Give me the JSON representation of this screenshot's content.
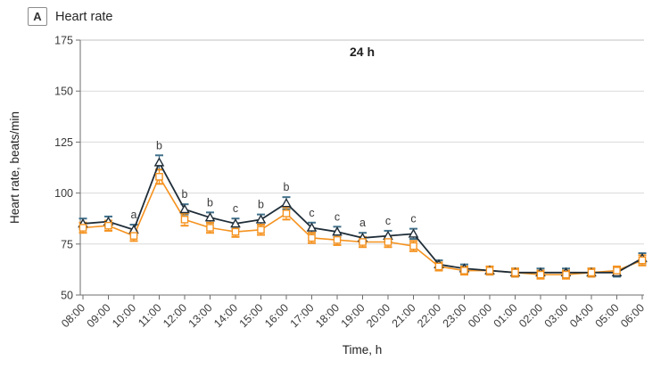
{
  "panel": {
    "label": "A",
    "title": "Heart rate"
  },
  "colors": {
    "dark_line": "#1f2d38",
    "dark_error": "#40708a",
    "orange": "#f5921e",
    "gridline": "#dadada",
    "top_border": "#c2c2c2",
    "axis": "#6e6e6e",
    "tick_text": "#3b3b3b",
    "title_text": "#1f1f1f"
  },
  "chart_data": {
    "type": "line",
    "title": "24 h",
    "xlabel": "Time, h",
    "ylabel": "Heart rate, beats/min",
    "ylim": [
      50,
      175
    ],
    "yticks": [
      50,
      75,
      100,
      125,
      150,
      175
    ],
    "gridlines": [
      75,
      100,
      125,
      150
    ],
    "top_border_value": 175,
    "legend": "none",
    "categories": [
      "08:00",
      "09:00",
      "10:00",
      "11:00",
      "12:00",
      "13:00",
      "14:00",
      "15:00",
      "16:00",
      "17:00",
      "18:00",
      "19:00",
      "20:00",
      "21:00",
      "22:00",
      "23:00",
      "00:00",
      "01:00",
      "02:00",
      "03:00",
      "04:00",
      "05:00",
      "06:00"
    ],
    "series": [
      {
        "name": "dark-triangle-series",
        "marker": "triangle",
        "color": "#1f2d38",
        "error_color": "#40708a",
        "values": [
          85,
          86,
          82,
          115,
          92,
          88,
          85,
          87,
          95,
          83,
          81,
          78,
          79,
          80,
          65,
          63,
          62,
          61,
          61,
          61,
          61,
          61,
          68
        ],
        "errors": [
          2.5,
          2.5,
          2.5,
          3.5,
          2.5,
          2.5,
          2.5,
          2.5,
          3,
          2.5,
          2.5,
          2.5,
          2.5,
          2.5,
          2,
          2,
          2,
          2,
          2,
          2,
          2,
          2,
          2.5
        ]
      },
      {
        "name": "orange-square-series",
        "marker": "square",
        "color": "#f5921e",
        "error_color": "#f5921e",
        "values": [
          83,
          84,
          79,
          108,
          87,
          83,
          81,
          82,
          90,
          78,
          77,
          76,
          76,
          74,
          64,
          62,
          62,
          61,
          60,
          60,
          61,
          62,
          67
        ],
        "errors": [
          2.5,
          2.5,
          2.5,
          3.5,
          3,
          2.5,
          2.5,
          2.5,
          3,
          2.5,
          2.5,
          2.5,
          2.5,
          2.5,
          2,
          2,
          2,
          2,
          2,
          2,
          2,
          2,
          2.5
        ]
      }
    ],
    "annotations": [
      "",
      "",
      "a",
      "b",
      "b",
      "b",
      "c",
      "b",
      "b",
      "c",
      "c",
      "a",
      "c",
      "c",
      "",
      "",
      "",
      "",
      "",
      "",
      "",
      "",
      ""
    ]
  }
}
